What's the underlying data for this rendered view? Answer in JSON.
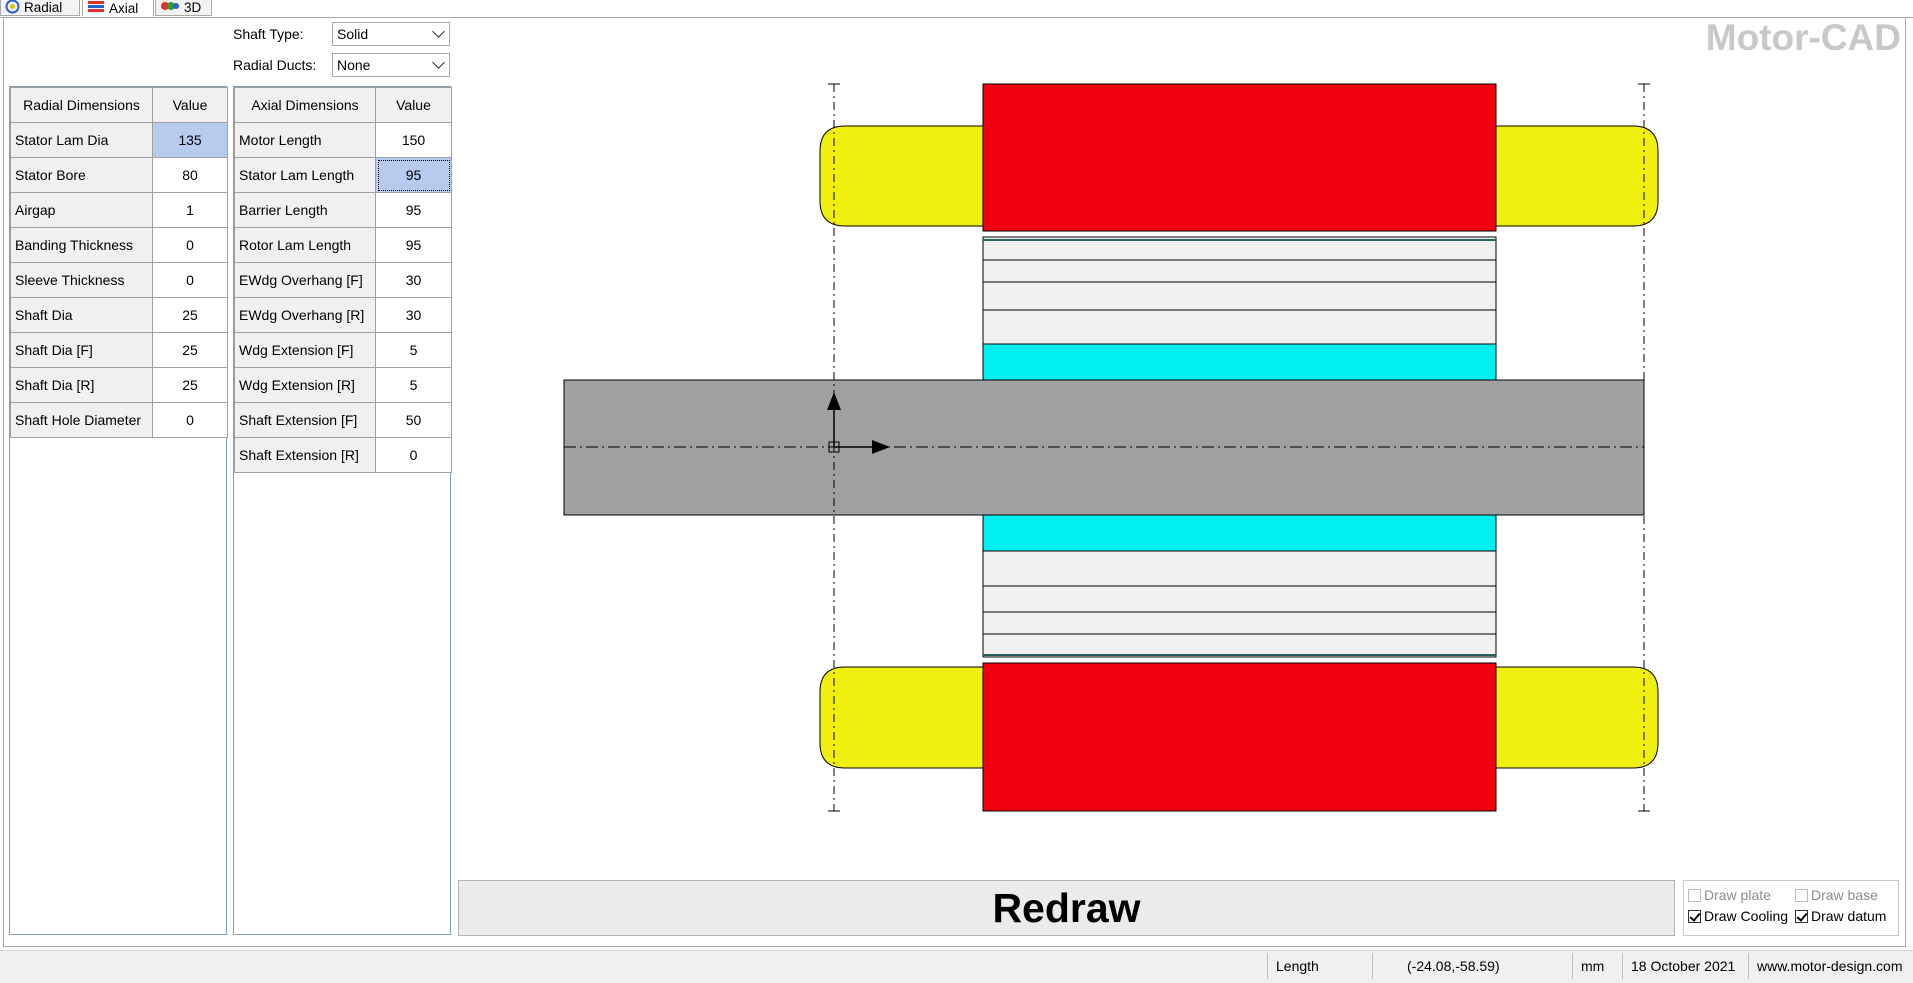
{
  "tabs": [
    {
      "label": "Radial",
      "icon": "radial-icon"
    },
    {
      "label": "Axial",
      "icon": "axial-icon"
    },
    {
      "label": "3D",
      "icon": "3d-icon"
    }
  ],
  "shaft_type": {
    "label": "Shaft Type:",
    "value": "Solid"
  },
  "radial_ducts": {
    "label": "Radial Ducts:",
    "value": "None"
  },
  "radial_table": {
    "headers": [
      "Radial Dimensions",
      "Value"
    ],
    "rows": [
      {
        "name": "Stator Lam Dia",
        "value": "135"
      },
      {
        "name": "Stator Bore",
        "value": "80"
      },
      {
        "name": "Airgap",
        "value": "1"
      },
      {
        "name": "Banding Thickness",
        "value": "0"
      },
      {
        "name": "Sleeve Thickness",
        "value": "0"
      },
      {
        "name": "Shaft Dia",
        "value": "25"
      },
      {
        "name": "Shaft Dia [F]",
        "value": "25"
      },
      {
        "name": "Shaft Dia [R]",
        "value": "25"
      },
      {
        "name": "Shaft Hole Diameter",
        "value": "0"
      }
    ]
  },
  "axial_table": {
    "headers": [
      "Axial Dimensions",
      "Value"
    ],
    "rows": [
      {
        "name": "Motor Length",
        "value": "150"
      },
      {
        "name": "Stator Lam Length",
        "value": "95"
      },
      {
        "name": "Barrier Length",
        "value": "95"
      },
      {
        "name": "Rotor Lam Length",
        "value": "95"
      },
      {
        "name": "EWdg Overhang [F]",
        "value": "30"
      },
      {
        "name": "EWdg Overhang [R]",
        "value": "30"
      },
      {
        "name": "Wdg Extension [F]",
        "value": "5"
      },
      {
        "name": "Wdg Extension [R]",
        "value": "5"
      },
      {
        "name": "Shaft Extension [F]",
        "value": "50"
      },
      {
        "name": "Shaft Extension [R]",
        "value": "0"
      }
    ]
  },
  "logo": "Motor-CAD",
  "redraw_label": "Redraw",
  "options": {
    "draw_plate": {
      "label": "Draw plate",
      "checked": false,
      "enabled": false
    },
    "draw_base": {
      "label": "Draw base",
      "checked": false,
      "enabled": false
    },
    "draw_cooling": {
      "label": "Draw Cooling",
      "checked": true,
      "enabled": true
    },
    "draw_datum": {
      "label": "Draw datum",
      "checked": true,
      "enabled": true
    }
  },
  "status": {
    "quantity": "Length",
    "coords": "(-24.08,-58.59)",
    "unit": "mm",
    "date": "18 October 2021",
    "website": "www.motor-design.com"
  },
  "colors": {
    "stator": "#f0000f",
    "end_winding": "#f0f00f",
    "shaft": "#a0a0a0",
    "cooling": "#00f0f0",
    "rotor_lam": "#f0f0f0"
  }
}
